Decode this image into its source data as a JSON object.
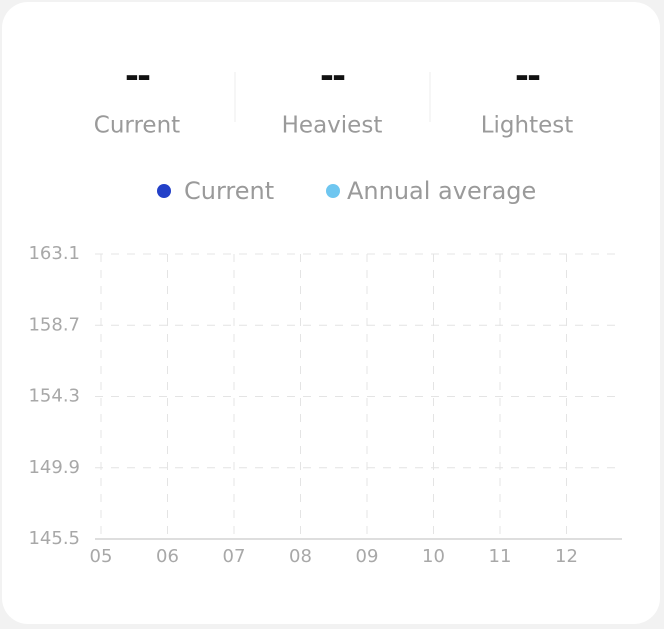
{
  "stats": [
    {
      "value": "--",
      "label": "Current"
    },
    {
      "value": "--",
      "label": "Heaviest"
    },
    {
      "value": "--",
      "label": "Lightest"
    }
  ],
  "chart_data": {
    "type": "line",
    "categories": [
      "05",
      "06",
      "07",
      "08",
      "09",
      "10",
      "11",
      "12"
    ],
    "series": [
      {
        "name": "Current",
        "color": "#2340c8",
        "values": [
          null,
          null,
          null,
          null,
          null,
          null,
          null,
          null
        ]
      },
      {
        "name": "Annual average",
        "color": "#6ec6f0",
        "values": [
          null,
          null,
          null,
          null,
          null,
          null,
          null,
          null
        ]
      }
    ],
    "ylim": [
      145.5,
      163.1
    ],
    "yticks": [
      163.1,
      158.7,
      154.3,
      149.9,
      145.5
    ],
    "grid": true
  }
}
